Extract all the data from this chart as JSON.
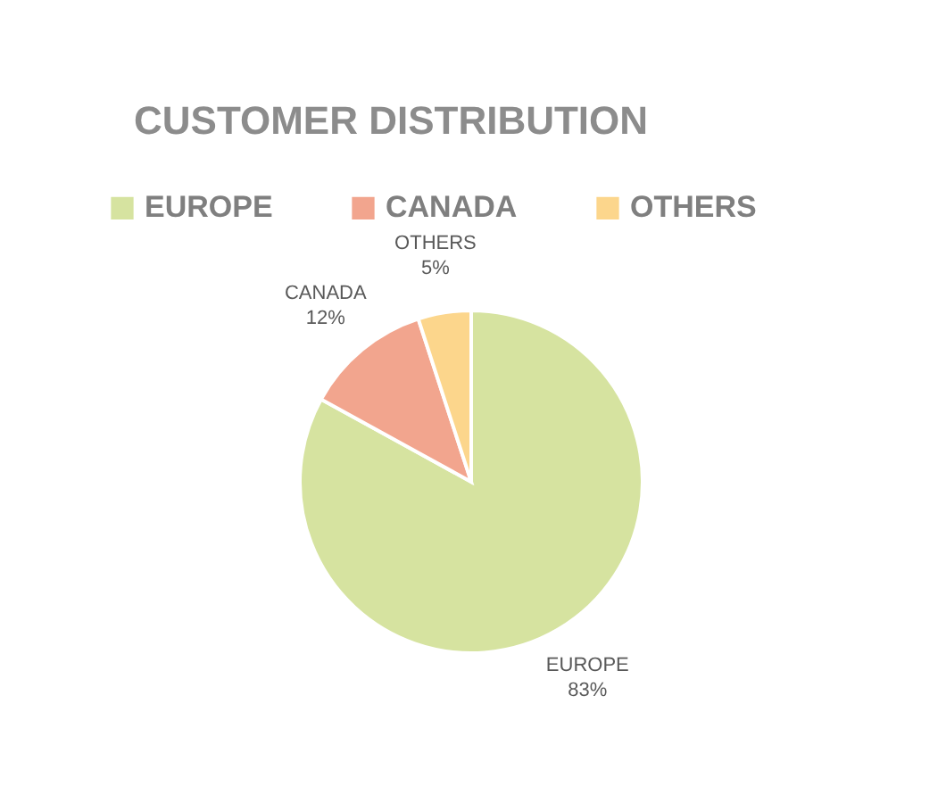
{
  "chart_data": {
    "type": "pie",
    "title": "CUSTOMER DISTRIBUTION",
    "categories": [
      "EUROPE",
      "CANADA",
      "OTHERS"
    ],
    "values": [
      83,
      12,
      5
    ],
    "colors": [
      "#d6e3a0",
      "#f2a58e",
      "#fcd68c"
    ],
    "value_labels": [
      "83%",
      "12%",
      "5%"
    ],
    "legend": "top"
  }
}
